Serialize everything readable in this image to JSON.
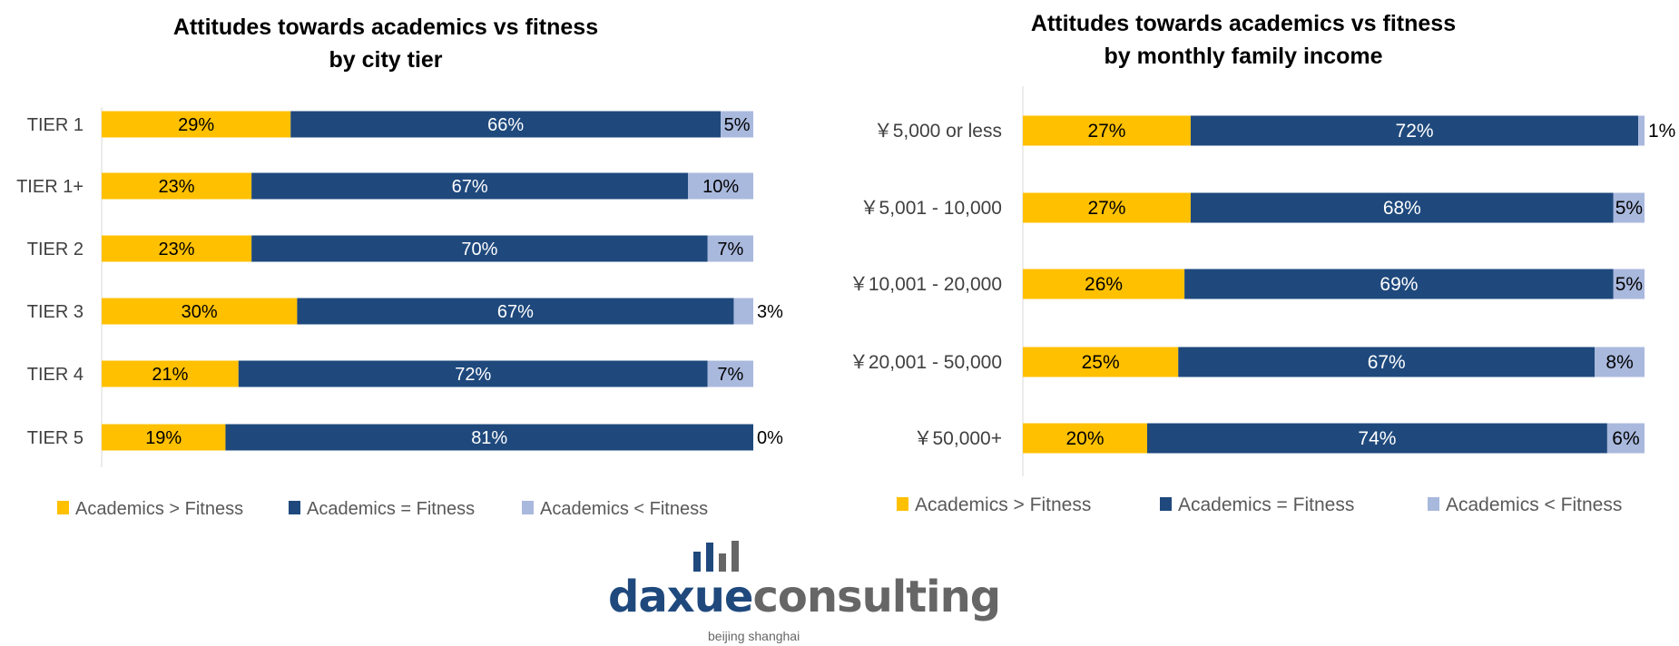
{
  "chart_data": [
    {
      "type": "bar",
      "orientation": "horizontal",
      "stacked": "percent",
      "title": [
        "Attitudes towards academics vs fitness",
        "by city tier"
      ],
      "categories": [
        "TIER 1",
        "TIER 1+",
        "TIER 2",
        "TIER 3",
        "TIER 4",
        "TIER 5"
      ],
      "series": [
        {
          "name": "Academics > Fitness",
          "color": "#FFC000",
          "label_color": "#000000",
          "values": [
            29,
            23,
            23,
            30,
            21,
            19
          ]
        },
        {
          "name": "Academics = Fitness",
          "color": "#1F497D",
          "label_color": "#FFFFFF",
          "values": [
            66,
            67,
            70,
            67,
            72,
            81
          ]
        },
        {
          "name": "Academics < Fitness",
          "color": "#A9B8DD",
          "label_color": "#000000",
          "values": [
            5,
            10,
            7,
            3,
            7,
            0
          ]
        }
      ],
      "value_suffix": "%",
      "legend": "bottom",
      "grid": false
    },
    {
      "type": "bar",
      "orientation": "horizontal",
      "stacked": "percent",
      "title": [
        "Attitudes towards academics vs fitness",
        "by monthly family income"
      ],
      "categories": [
        "￥5,000 or less",
        "￥5,001 - 10,000",
        "￥10,001 - 20,000",
        "￥20,001 - 50,000",
        "￥50,000+"
      ],
      "series": [
        {
          "name": "Academics > Fitness",
          "color": "#FFC000",
          "label_color": "#000000",
          "values": [
            27,
            27,
            26,
            25,
            20
          ]
        },
        {
          "name": "Academics = Fitness",
          "color": "#1F497D",
          "label_color": "#FFFFFF",
          "values": [
            72,
            68,
            69,
            67,
            74
          ]
        },
        {
          "name": "Academics < Fitness",
          "color": "#A9B8DD",
          "label_color": "#000000",
          "values": [
            1,
            5,
            5,
            8,
            6
          ]
        }
      ],
      "value_suffix": "%",
      "legend": "bottom",
      "grid": false
    }
  ],
  "logo": {
    "brand_primary": "daxue",
    "brand_secondary": "consulting",
    "tagline": "beijing shanghai",
    "primary_color": "#1F497D",
    "secondary_color": "#666666"
  }
}
